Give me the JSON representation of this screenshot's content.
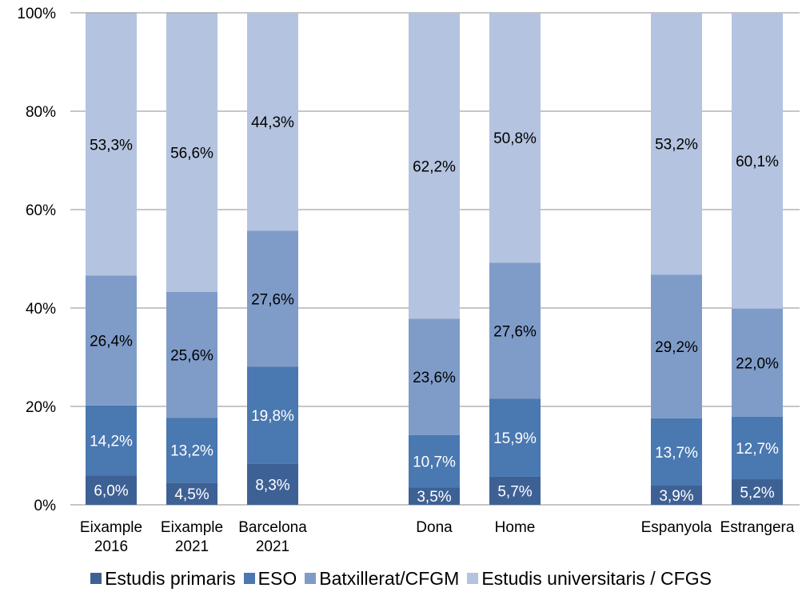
{
  "chart_data": {
    "type": "bar",
    "stacked": true,
    "normalized": true,
    "categories": [
      [
        "Eixample",
        "2016"
      ],
      [
        "Eixample",
        "2021"
      ],
      [
        "Barcelona",
        "2021"
      ],
      [
        "Dona"
      ],
      [
        "Home"
      ],
      [
        "Espanyola"
      ],
      [
        "Estrangera"
      ]
    ],
    "category_groups": [
      [
        0,
        1,
        2
      ],
      [
        3,
        4
      ],
      [
        5,
        6
      ]
    ],
    "series": [
      {
        "name": "Estudis primaris",
        "color": "#3e6195",
        "values": [
          6.0,
          4.5,
          8.3,
          3.5,
          5.7,
          3.9,
          5.2
        ],
        "labels": [
          "6,0%",
          "4,5%",
          "8,3%",
          "3,5%",
          "5,7%",
          "3,9%",
          "5,2%"
        ]
      },
      {
        "name": "ESO",
        "color": "#4a78b0",
        "values": [
          14.2,
          13.2,
          19.8,
          10.7,
          15.9,
          13.7,
          12.7
        ],
        "labels": [
          "14,2%",
          "13,2%",
          "19,8%",
          "10,7%",
          "15,9%",
          "13,7%",
          "12,7%"
        ]
      },
      {
        "name": "Batxillerat/CFGM",
        "color": "#7f9cc9",
        "values": [
          26.4,
          25.6,
          27.6,
          23.6,
          27.6,
          29.2,
          22.0
        ],
        "labels": [
          "26,4%",
          "25,6%",
          "27,6%",
          "23,6%",
          "27,6%",
          "29,2%",
          "22,0%"
        ]
      },
      {
        "name": "Estudis universitaris / CFGS",
        "color": "#b4c3df",
        "values": [
          53.3,
          56.6,
          44.3,
          62.2,
          50.8,
          53.2,
          60.1
        ],
        "labels": [
          "53,3%",
          "56,6%",
          "44,3%",
          "62,2%",
          "50,8%",
          "53,2%",
          "60,1%"
        ]
      }
    ],
    "yticks": [
      "0%",
      "20%",
      "40%",
      "60%",
      "80%",
      "100%"
    ],
    "ylim": [
      0,
      100
    ],
    "grid": true,
    "legend_position": "bottom",
    "label_colors": {
      "dark": "#ffffff",
      "light": "#000000"
    }
  },
  "legend": {
    "items": [
      {
        "label": "Estudis primaris",
        "color": "#3e6195"
      },
      {
        "label": "ESO",
        "color": "#4a78b0"
      },
      {
        "label": "Batxillerat/CFGM",
        "color": "#7f9cc9"
      },
      {
        "label": "Estudis universitaris / CFGS",
        "color": "#b4c3df"
      }
    ]
  }
}
